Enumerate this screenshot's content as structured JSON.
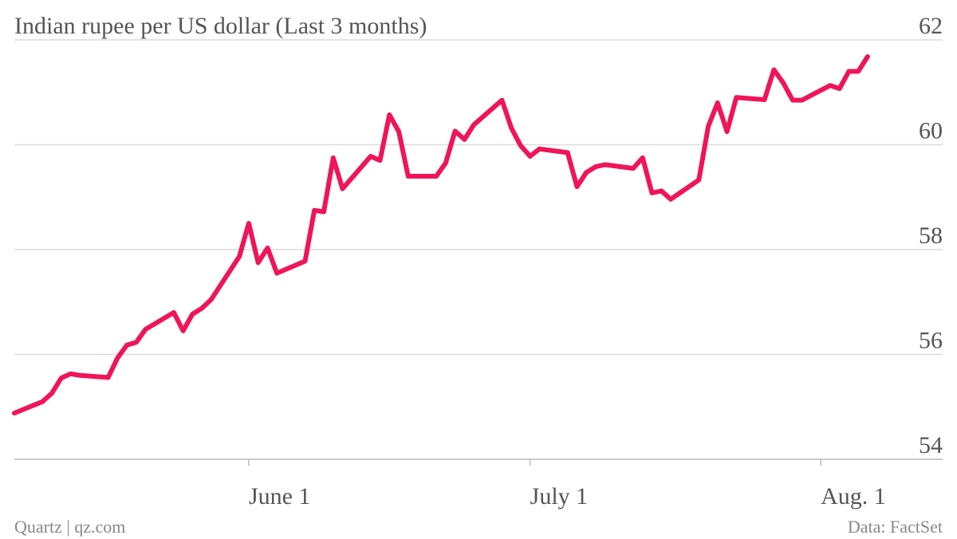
{
  "chart_data": {
    "type": "line",
    "title": "Indian rupee per US dollar (Last 3 months)",
    "xlabel": "",
    "ylabel": "",
    "ylim": [
      54,
      62
    ],
    "xlim": [
      "2013-05-07",
      "2013-08-14"
    ],
    "yticks": [
      "54",
      "56",
      "58",
      "60",
      "62"
    ],
    "xticks": [
      {
        "date": "2013-06-01",
        "label": "June 1"
      },
      {
        "date": "2013-07-01",
        "label": "July 1"
      },
      {
        "date": "2013-08-01",
        "label": "Aug. 1"
      }
    ],
    "grid": true,
    "legend": "none",
    "color": "#f0145a",
    "series": [
      {
        "points": [
          [
            "2013-05-07",
            54.88
          ],
          [
            "2013-05-10",
            55.1
          ],
          [
            "2013-05-11",
            55.26
          ],
          [
            "2013-05-12",
            55.55
          ],
          [
            "2013-05-13",
            55.63
          ],
          [
            "2013-05-14",
            55.6
          ],
          [
            "2013-05-17",
            55.56
          ],
          [
            "2013-05-18",
            55.93
          ],
          [
            "2013-05-19",
            56.18
          ],
          [
            "2013-05-20",
            56.23
          ],
          [
            "2013-05-21",
            56.48
          ],
          [
            "2013-05-24",
            56.8
          ],
          [
            "2013-05-25",
            56.45
          ],
          [
            "2013-05-26",
            56.77
          ],
          [
            "2013-05-27",
            56.88
          ],
          [
            "2013-05-28",
            57.05
          ],
          [
            "2013-05-31",
            57.87
          ],
          [
            "2013-06-01",
            58.5
          ],
          [
            "2013-06-02",
            57.75
          ],
          [
            "2013-06-03",
            58.03
          ],
          [
            "2013-06-04",
            57.55
          ],
          [
            "2013-06-07",
            57.78
          ],
          [
            "2013-06-08",
            58.75
          ],
          [
            "2013-06-09",
            58.72
          ],
          [
            "2013-06-10",
            59.75
          ],
          [
            "2013-06-11",
            59.16
          ],
          [
            "2013-06-14",
            59.78
          ],
          [
            "2013-06-15",
            59.7
          ],
          [
            "2013-06-16",
            60.57
          ],
          [
            "2013-06-17",
            60.25
          ],
          [
            "2013-06-18",
            59.4
          ],
          [
            "2013-06-21",
            59.4
          ],
          [
            "2013-06-22",
            59.65
          ],
          [
            "2013-06-23",
            60.26
          ],
          [
            "2013-06-24",
            60.1
          ],
          [
            "2013-06-25",
            60.38
          ],
          [
            "2013-06-28",
            60.85
          ],
          [
            "2013-06-29",
            60.32
          ],
          [
            "2013-06-30",
            59.98
          ],
          [
            "2013-07-01",
            59.78
          ],
          [
            "2013-07-02",
            59.92
          ],
          [
            "2013-07-05",
            59.85
          ],
          [
            "2013-07-06",
            59.2
          ],
          [
            "2013-07-07",
            59.47
          ],
          [
            "2013-07-08",
            59.58
          ],
          [
            "2013-07-09",
            59.62
          ],
          [
            "2013-07-12",
            59.55
          ],
          [
            "2013-07-13",
            59.75
          ],
          [
            "2013-07-14",
            59.08
          ],
          [
            "2013-07-15",
            59.12
          ],
          [
            "2013-07-16",
            58.96
          ],
          [
            "2013-07-19",
            59.33
          ],
          [
            "2013-07-20",
            60.35
          ],
          [
            "2013-07-21",
            60.8
          ],
          [
            "2013-07-22",
            60.25
          ],
          [
            "2013-07-23",
            60.9
          ],
          [
            "2013-07-26",
            60.86
          ],
          [
            "2013-07-27",
            61.43
          ],
          [
            "2013-07-28",
            61.18
          ],
          [
            "2013-07-29",
            60.85
          ],
          [
            "2013-07-30",
            60.85
          ],
          [
            "2013-08-02",
            61.13
          ],
          [
            "2013-08-03",
            61.07
          ],
          [
            "2013-08-04",
            61.4
          ],
          [
            "2013-08-05",
            61.4
          ],
          [
            "2013-08-06",
            61.68
          ]
        ]
      }
    ]
  },
  "footer": {
    "source_left": "Quartz | qz.com",
    "source_right": "Data: FactSet"
  }
}
